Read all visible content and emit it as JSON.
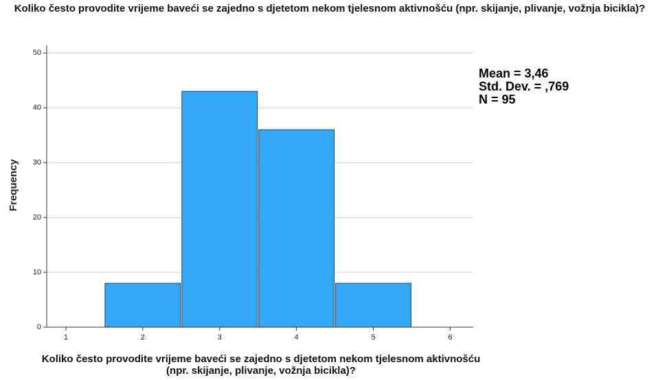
{
  "chart_data": {
    "type": "histogram",
    "title": "Koliko često provodite vrijeme baveći se zajedno s djetetom nekom tjelesnom aktivnošću (npr. skijanje, plivanje, vožnja bicikla)?",
    "xlabel": "Koliko često provodite vrijeme baveći se zajedno s djetetom nekom tjelesnom aktivnošću (npr. skijanje, plivanje, vožnja bicikla)?",
    "ylabel": "Frequency",
    "bins": [
      1.5,
      2.5,
      3.5,
      4.5,
      5.5
    ],
    "counts": [
      8,
      43,
      36,
      8
    ],
    "color": "#33a9fc",
    "xlim": [
      0.75,
      6.3
    ],
    "xticks": [
      1,
      2,
      3,
      4,
      5,
      6
    ],
    "ylim": [
      0,
      51.4
    ],
    "yticks": [
      0,
      10,
      20,
      30,
      40,
      50
    ],
    "grid": true,
    "annotations": [
      "Mean = 3,46",
      "Std. Dev. = ,769",
      "N = 95"
    ]
  }
}
